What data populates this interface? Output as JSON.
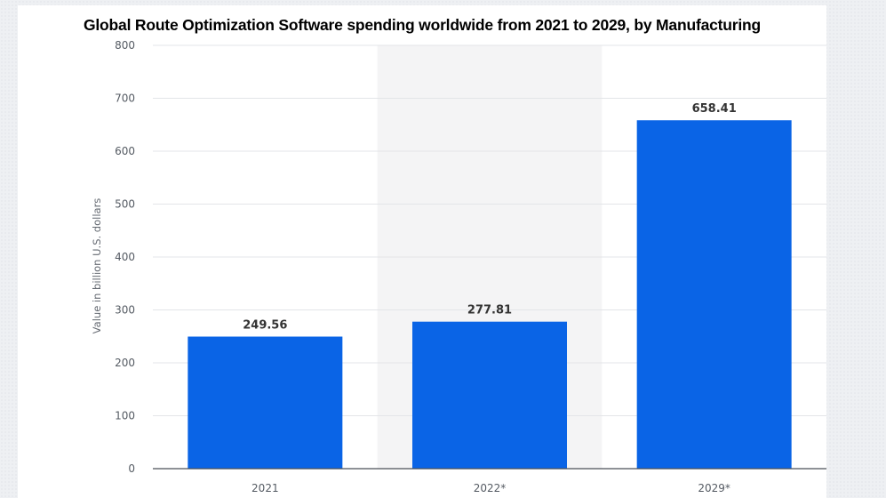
{
  "chart_data": {
    "type": "bar",
    "title": "Global Route Optimization Software spending worldwide from 2021 to 2029, by Manufacturing",
    "ylabel": "Value in billion U.S. dollars",
    "xlabel": "",
    "categories": [
      "2021",
      "2022*",
      "2029*"
    ],
    "values": [
      249.56,
      277.81,
      658.41
    ],
    "data_labels": [
      "249.56",
      "277.81",
      "658.41"
    ],
    "ylim": [
      0,
      800
    ],
    "yticks": [
      0,
      100,
      200,
      300,
      400,
      500,
      600,
      700,
      800
    ],
    "grid": true,
    "legend": "none",
    "bar_color": "#0a64e6",
    "highlight_band_color": "#f4f4f5"
  }
}
